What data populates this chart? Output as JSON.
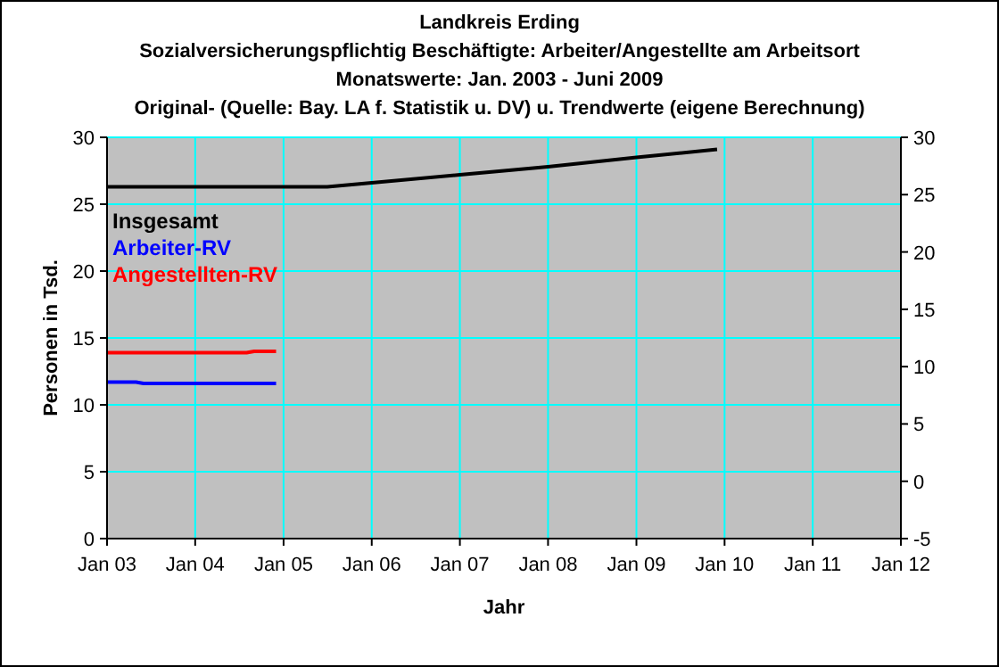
{
  "chart_data": {
    "type": "line",
    "title": "Landkreis Erding",
    "subtitle": "Sozialversicherungspflichtig Beschäftigte: Arbeiter/Angestellte am Arbeitsort\nMonatswerte: Jan. 2003 - Juni 2009\nOriginal- (Quelle: Bay. LA f. Statistik u. DV) u. Trendwerte (eigene Berechnung)",
    "xlabel": "Jahr",
    "ylabel": "Personen in Tsd.",
    "xlim": [
      "2003-01",
      "2012-01"
    ],
    "xticks": [
      {
        "value": "2003-01",
        "label": "Jan 03"
      },
      {
        "value": "2004-01",
        "label": "Jan 04"
      },
      {
        "value": "2005-01",
        "label": "Jan 05"
      },
      {
        "value": "2006-01",
        "label": "Jan 06"
      },
      {
        "value": "2007-01",
        "label": "Jan 07"
      },
      {
        "value": "2008-01",
        "label": "Jan 08"
      },
      {
        "value": "2009-01",
        "label": "Jan 09"
      },
      {
        "value": "2010-01",
        "label": "Jan 10"
      },
      {
        "value": "2011-01",
        "label": "Jan 11"
      },
      {
        "value": "2012-01",
        "label": "Jan 12"
      }
    ],
    "ylim": [
      0,
      30
    ],
    "yticks": [
      0,
      5,
      10,
      15,
      20,
      25,
      30
    ],
    "y2lim": [
      -5,
      30
    ],
    "y2ticks": [
      -5,
      0,
      5,
      10,
      15,
      20,
      25,
      30
    ],
    "grid": true,
    "legend": "top left",
    "marker": "none",
    "line_style": "solid",
    "series": [
      {
        "name": "Insgesamt",
        "color": "#000000",
        "x": [
          "2003-01",
          "2005-07",
          "2005-11",
          "2007-01",
          "2008-01",
          "2009-01",
          "2009-12"
        ],
        "values": [
          26.3,
          26.3,
          26.5,
          27.2,
          27.8,
          28.5,
          29.1
        ]
      },
      {
        "name": "Arbeiter-RV",
        "color": "#0000ff",
        "x": [
          "2003-01",
          "2003-05",
          "2003-06",
          "2004-12"
        ],
        "values": [
          11.7,
          11.7,
          11.6,
          11.6
        ]
      },
      {
        "name": "Angestellten-RV",
        "color": "#ff0000",
        "x": [
          "2003-01",
          "2004-08",
          "2004-09",
          "2004-12"
        ],
        "values": [
          13.9,
          13.9,
          14.0,
          14.0
        ]
      }
    ]
  }
}
